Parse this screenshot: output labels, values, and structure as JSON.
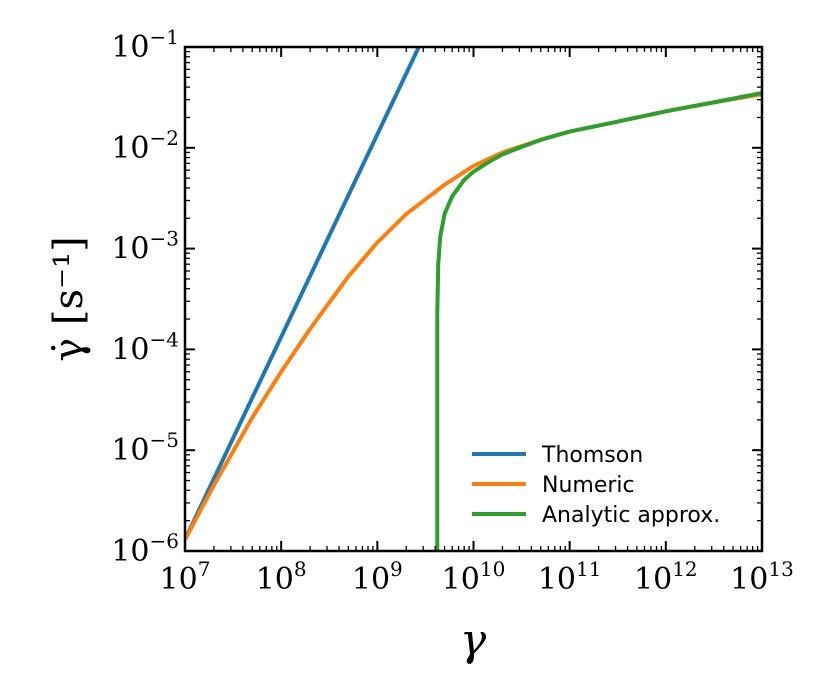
{
  "chart_data": {
    "type": "line",
    "xscale": "log",
    "yscale": "log",
    "xlim": [
      10000000.0,
      10000000000000.0
    ],
    "ylim": [
      1e-06,
      0.1
    ],
    "xlabel": "γ",
    "ylabel": "γ̇ [s⁻¹]",
    "x_tick_labels": [
      {
        "base": "10",
        "exp": "7"
      },
      {
        "base": "10",
        "exp": "8"
      },
      {
        "base": "10",
        "exp": "9"
      },
      {
        "base": "10",
        "exp": "10"
      },
      {
        "base": "10",
        "exp": "11"
      },
      {
        "base": "10",
        "exp": "12"
      },
      {
        "base": "10",
        "exp": "13"
      }
    ],
    "y_tick_labels": [
      {
        "base": "10",
        "exp": "−6"
      },
      {
        "base": "10",
        "exp": "−5"
      },
      {
        "base": "10",
        "exp": "−4"
      },
      {
        "base": "10",
        "exp": "−3"
      },
      {
        "base": "10",
        "exp": "−2"
      },
      {
        "base": "10",
        "exp": "−1"
      }
    ],
    "legend": "lower-right",
    "grid": false,
    "series": [
      {
        "name": "Thomson",
        "color": "#1f77b4",
        "x": [
          10000000.0,
          2700000000.0
        ],
        "y": [
          1.3e-06,
          0.1
        ]
      },
      {
        "name": "Numeric",
        "color": "#ff7f0e",
        "x": [
          10000000.0,
          20000000.0,
          50000000.0,
          100000000.0,
          200000000.0,
          500000000.0,
          1000000000.0,
          2000000000.0,
          5000000000.0,
          10000000000.0,
          20000000000.0,
          50000000000.0,
          100000000000.0,
          300000000000.0,
          1000000000000.0,
          3000000000000.0,
          10000000000000.0
        ],
        "y": [
          1.3e-06,
          4.5e-06,
          2.1e-05,
          6e-05,
          0.00016,
          0.00053,
          0.00115,
          0.0022,
          0.0043,
          0.0066,
          0.009,
          0.012,
          0.0145,
          0.018,
          0.023,
          0.028,
          0.034
        ]
      },
      {
        "name": "Analytic approx.",
        "color": "#2ca02c",
        "x": [
          4200000000.0,
          4200000000.0,
          4300000000.0,
          4500000000.0,
          5000000000.0,
          6000000000.0,
          8000000000.0,
          10000000000.0,
          15000000000.0,
          20000000000.0,
          30000000000.0,
          50000000000.0,
          100000000000.0,
          300000000000.0,
          1000000000000.0,
          3000000000000.0,
          10000000000000.0
        ],
        "y": [
          1e-06,
          0.00023,
          0.0007,
          0.0013,
          0.0022,
          0.0033,
          0.0048,
          0.0058,
          0.0074,
          0.0086,
          0.01,
          0.012,
          0.0145,
          0.018,
          0.023,
          0.028,
          0.035
        ]
      }
    ]
  }
}
